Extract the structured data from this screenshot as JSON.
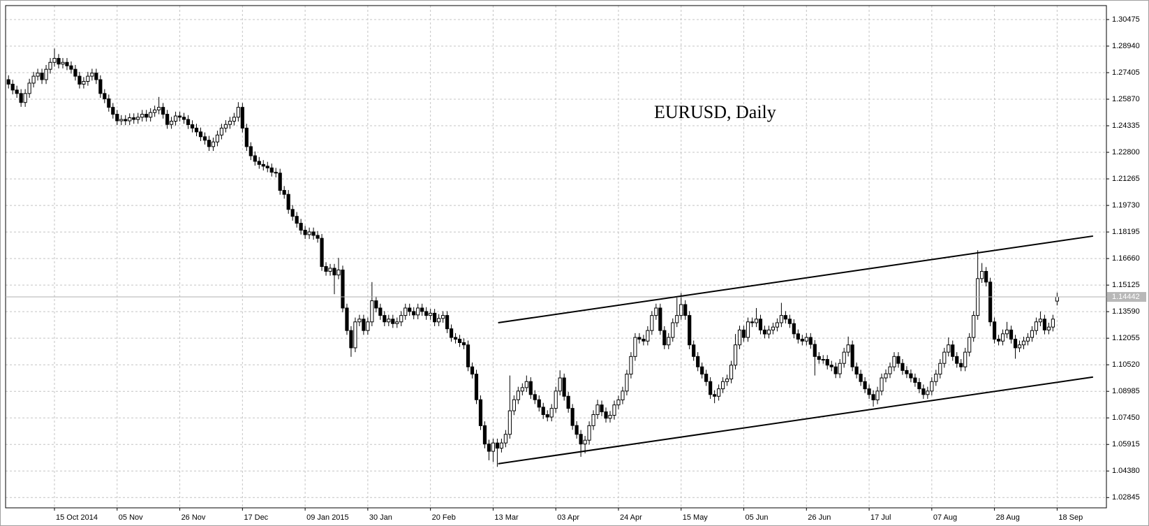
{
  "chart_data": {
    "type": "candlestick",
    "title": "EURUSD, Daily",
    "xlim": [
      -0.7,
      262.8
    ],
    "ylim": [
      1.02251,
      1.31281
    ],
    "grid": true,
    "up_color": "#ffffff",
    "down_color": "#000000",
    "line_color": "#000000",
    "xticks": [
      {
        "value": 11,
        "label": "15 Oct 2014"
      },
      {
        "value": 26,
        "label": "05 Nov"
      },
      {
        "value": 41,
        "label": "26 Nov"
      },
      {
        "value": 56,
        "label": "17 Dec"
      },
      {
        "value": 71,
        "label": "09 Jan 2015"
      },
      {
        "value": 86,
        "label": "30 Jan"
      },
      {
        "value": 101,
        "label": "20 Feb"
      },
      {
        "value": 116,
        "label": "13 Mar"
      },
      {
        "value": 131,
        "label": "03 Apr"
      },
      {
        "value": 146,
        "label": "24 Apr"
      },
      {
        "value": 161,
        "label": "15 May"
      },
      {
        "value": 176,
        "label": "05 Jun"
      },
      {
        "value": 191,
        "label": "26 Jun"
      },
      {
        "value": 206,
        "label": "17 Jul"
      },
      {
        "value": 221,
        "label": "07 Aug"
      },
      {
        "value": 236,
        "label": "28 Aug"
      },
      {
        "value": 251,
        "label": "18 Sep"
      }
    ],
    "yticks": [
      1.30475,
      {
        "value": 1.2894,
        "label": "1.28940"
      },
      1.27405,
      {
        "value": 1.2587,
        "label": "1.25870"
      },
      1.24335,
      {
        "value": 1.228,
        "label": "1.22800"
      },
      1.21265,
      {
        "value": 1.1973,
        "label": "1.19730"
      },
      1.18195,
      {
        "value": 1.1666,
        "label": "1.16660"
      },
      1.15125,
      {
        "value": 1.1359,
        "label": "1.13590"
      },
      1.12055,
      {
        "value": 1.1052,
        "label": "1.10520"
      },
      1.08985,
      {
        "value": 1.0745,
        "label": "1.07450"
      },
      1.05915,
      {
        "value": 1.0438,
        "label": "1.04380"
      },
      1.02845
    ],
    "last_price": 1.14442,
    "trendlines": [
      {
        "x": [
          117.2,
          259.6
        ],
        "y": [
          1.1295,
          1.1796
        ]
      },
      {
        "x": [
          117.2,
          259.6
        ],
        "y": [
          1.048,
          1.0981
        ]
      }
    ],
    "open": [
      1.27,
      1.2674,
      1.264,
      1.262,
      1.2568,
      1.262,
      1.268,
      1.272,
      1.2738,
      1.27,
      1.276,
      1.28,
      1.2823,
      1.279,
      1.28,
      1.278,
      1.276,
      1.272,
      1.2674,
      1.269,
      1.272,
      1.2738,
      1.27,
      1.262,
      1.2589,
      1.254,
      1.25,
      1.2462,
      1.247,
      1.2462,
      1.248,
      1.247,
      1.2483,
      1.25,
      1.2483,
      1.251,
      1.2525,
      1.254,
      1.25,
      1.2441,
      1.246,
      1.249,
      1.2483,
      1.247,
      1.244,
      1.242,
      1.2398,
      1.237,
      1.235,
      1.2313,
      1.234,
      1.238,
      1.242,
      1.2441,
      1.246,
      1.2483,
      1.254,
      1.242,
      1.2313,
      1.226,
      1.2228,
      1.221,
      1.22,
      1.219,
      1.2165,
      1.216,
      1.206,
      1.2037,
      1.195,
      1.191,
      1.187,
      1.183,
      1.1804,
      1.182,
      1.18,
      1.1783,
      1.162,
      1.1592,
      1.161,
      1.1571,
      1.16,
      1.138,
      1.125,
      1.115,
      1.13,
      1.1316,
      1.125,
      1.13,
      1.1422,
      1.138,
      1.1337,
      1.13,
      1.1316,
      1.129,
      1.13,
      1.1337,
      1.138,
      1.136,
      1.134,
      1.138,
      1.136,
      1.1337,
      1.135,
      1.13,
      1.132,
      1.1337,
      1.126,
      1.121,
      1.12,
      1.118,
      1.1167,
      1.104,
      1.0998,
      1.085,
      1.07,
      1.0594,
      1.0552,
      1.06,
      1.057,
      1.06,
      1.065,
      1.0786,
      1.085,
      1.09,
      1.092,
      1.0955,
      1.088,
      1.085,
      1.0807,
      1.0764,
      1.075,
      1.08,
      1.09,
      1.0976,
      1.087,
      1.08,
      1.0701,
      1.065,
      1.0594,
      1.0616,
      1.07,
      1.0764,
      1.082,
      1.078,
      1.0743,
      1.076,
      1.082,
      1.0849,
      1.09,
      1.0998,
      1.11,
      1.121,
      1.12,
      1.1189,
      1.125,
      1.1337,
      1.138,
      1.125,
      1.1167,
      1.121,
      1.1295,
      1.1337,
      1.14,
      1.1337,
      1.1167,
      1.11,
      1.104,
      1.0998,
      1.0955,
      1.088,
      1.087,
      1.0913,
      1.0955,
      1.097,
      1.105,
      1.1167,
      1.1253,
      1.121,
      1.13,
      1.1295,
      1.1316,
      1.1253,
      1.123,
      1.1253,
      1.127,
      1.1295,
      1.1337,
      1.1316,
      1.129,
      1.1231,
      1.12,
      1.1189,
      1.121,
      1.117,
      1.11,
      1.1083,
      1.1083,
      1.105,
      1.104,
      1.1,
      1.106,
      1.1125,
      1.1167,
      1.104,
      1.0998,
      1.0955,
      1.0913,
      1.088,
      1.0849,
      1.09,
      1.0976,
      1.1,
      1.104,
      1.11,
      1.106,
      1.1019,
      1.1,
      1.0976,
      1.095,
      1.0913,
      1.088,
      1.09,
      1.0955,
      1.0998,
      1.106,
      1.1125,
      1.1167,
      1.11,
      1.106,
      1.104,
      1.1125,
      1.121,
      1.1337,
      1.155,
      1.1592,
      1.153,
      1.13,
      1.12,
      1.1189,
      1.1231,
      1.1253,
      1.12,
      1.115,
      1.1167,
      1.1189,
      1.121,
      1.125,
      1.13,
      1.1316,
      1.1253,
      1.127,
      1.142
    ],
    "high": [
      1.2725,
      1.2699,
      1.2665,
      1.2645,
      1.2645,
      1.2705,
      1.2745,
      1.2763,
      1.2763,
      1.2785,
      1.2825,
      1.288,
      1.2848,
      1.2825,
      1.2825,
      1.2805,
      1.2785,
      1.2745,
      1.2715,
      1.2745,
      1.2763,
      1.2763,
      1.2725,
      1.2645,
      1.2614,
      1.2565,
      1.2525,
      1.2495,
      1.2495,
      1.2505,
      1.2505,
      1.2508,
      1.2525,
      1.2525,
      1.2535,
      1.255,
      1.26,
      1.2565,
      1.2525,
      1.2485,
      1.2515,
      1.2515,
      1.2508,
      1.2495,
      1.2465,
      1.2445,
      1.2423,
      1.2395,
      1.2375,
      1.2365,
      1.2405,
      1.2445,
      1.2466,
      1.2485,
      1.2508,
      1.257,
      1.2565,
      1.2445,
      1.2338,
      1.2285,
      1.2253,
      1.2235,
      1.2225,
      1.2215,
      1.219,
      1.2185,
      1.2085,
      1.2062,
      1.1975,
      1.1935,
      1.1895,
      1.1855,
      1.1845,
      1.1845,
      1.1825,
      1.1808,
      1.1645,
      1.1635,
      1.1635,
      1.167,
      1.1625,
      1.1405,
      1.1275,
      1.1325,
      1.1341,
      1.1341,
      1.1325,
      1.153,
      1.1447,
      1.1405,
      1.1362,
      1.1341,
      1.1341,
      1.1325,
      1.1362,
      1.1405,
      1.1405,
      1.1385,
      1.1405,
      1.1405,
      1.1385,
      1.1375,
      1.1375,
      1.1345,
      1.1362,
      1.1362,
      1.1285,
      1.1235,
      1.1225,
      1.1205,
      1.1192,
      1.1065,
      1.1023,
      1.0875,
      1.0725,
      1.0619,
      1.0625,
      1.0625,
      1.0625,
      1.0675,
      1.099,
      1.0875,
      1.0925,
      1.0945,
      1.099,
      1.098,
      1.0905,
      1.0875,
      1.0832,
      1.0789,
      1.0825,
      1.0925,
      1.102,
      1.1001,
      1.0895,
      1.0825,
      1.0726,
      1.0675,
      1.0641,
      1.0725,
      1.0789,
      1.085,
      1.0845,
      1.0805,
      1.0785,
      1.0845,
      1.0874,
      1.0925,
      1.1023,
      1.1125,
      1.1235,
      1.1235,
      1.1225,
      1.1275,
      1.1362,
      1.1405,
      1.1405,
      1.1275,
      1.1235,
      1.132,
      1.144,
      1.1467,
      1.1425,
      1.1362,
      1.1192,
      1.1125,
      1.1065,
      1.1023,
      1.098,
      1.0905,
      1.0938,
      1.098,
      1.0995,
      1.1075,
      1.123,
      1.1278,
      1.1278,
      1.1325,
      1.1325,
      1.138,
      1.1341,
      1.1278,
      1.1278,
      1.1295,
      1.132,
      1.141,
      1.1362,
      1.1341,
      1.1315,
      1.1256,
      1.1225,
      1.1235,
      1.1235,
      1.1195,
      1.1125,
      1.1108,
      1.1108,
      1.1075,
      1.1065,
      1.1085,
      1.115,
      1.1215,
      1.1192,
      1.1065,
      1.1023,
      1.098,
      1.0938,
      1.0905,
      1.0925,
      1.1001,
      1.1025,
      1.1065,
      1.1125,
      1.1125,
      1.1085,
      1.1044,
      1.1025,
      1.1001,
      1.0975,
      1.0938,
      1.0925,
      1.098,
      1.1023,
      1.1085,
      1.115,
      1.121,
      1.1192,
      1.1125,
      1.1085,
      1.115,
      1.1235,
      1.1362,
      1.1714,
      1.164,
      1.1617,
      1.1555,
      1.1325,
      1.1225,
      1.1256,
      1.13,
      1.1278,
      1.1225,
      1.1192,
      1.1214,
      1.1235,
      1.1275,
      1.1325,
      1.136,
      1.1341,
      1.1295,
      1.1341,
      1.1469
    ],
    "low": [
      1.2649,
      1.2615,
      1.2595,
      1.2543,
      1.2543,
      1.2595,
      1.2655,
      1.2695,
      1.2675,
      1.2675,
      1.2735,
      1.2775,
      1.2765,
      1.2765,
      1.2755,
      1.2735,
      1.2695,
      1.2649,
      1.2649,
      1.2665,
      1.2695,
      1.2675,
      1.2595,
      1.2564,
      1.2515,
      1.2475,
      1.2437,
      1.2437,
      1.2437,
      1.2437,
      1.2445,
      1.2445,
      1.2458,
      1.2458,
      1.2458,
      1.2485,
      1.25,
      1.2475,
      1.2416,
      1.2416,
      1.2435,
      1.2458,
      1.2445,
      1.2415,
      1.2395,
      1.2373,
      1.2345,
      1.2325,
      1.2288,
      1.2288,
      1.2315,
      1.2355,
      1.2395,
      1.2416,
      1.2435,
      1.2458,
      1.2395,
      1.2288,
      1.2235,
      1.2203,
      1.2185,
      1.2175,
      1.2165,
      1.214,
      1.2135,
      1.2035,
      1.2012,
      1.1925,
      1.1885,
      1.1845,
      1.1805,
      1.1779,
      1.1779,
      1.1775,
      1.1758,
      1.1595,
      1.1567,
      1.1567,
      1.146,
      1.1546,
      1.1355,
      1.1225,
      1.1098,
      1.1125,
      1.1275,
      1.1225,
      1.1225,
      1.1275,
      1.1355,
      1.1312,
      1.1275,
      1.1275,
      1.1265,
      1.1265,
      1.1275,
      1.1312,
      1.1335,
      1.1315,
      1.1315,
      1.1335,
      1.1312,
      1.1312,
      1.1275,
      1.1275,
      1.1295,
      1.1235,
      1.1185,
      1.1175,
      1.1155,
      1.1142,
      1.1015,
      1.0973,
      1.0825,
      1.0675,
      1.0569,
      1.05,
      1.049,
      1.0462,
      1.0545,
      1.0575,
      1.0625,
      1.0761,
      1.0825,
      1.0875,
      1.0895,
      1.0855,
      1.0825,
      1.0782,
      1.0739,
      1.0725,
      1.0725,
      1.0775,
      1.0875,
      1.0845,
      1.0775,
      1.0676,
      1.0625,
      1.052,
      1.054,
      1.0591,
      1.0675,
      1.0739,
      1.0755,
      1.0718,
      1.0718,
      1.0735,
      1.0795,
      1.0824,
      1.0875,
      1.0973,
      1.1075,
      1.1175,
      1.1164,
      1.1164,
      1.1225,
      1.1312,
      1.1225,
      1.1142,
      1.1142,
      1.1185,
      1.127,
      1.1312,
      1.1312,
      1.1142,
      1.1075,
      1.1015,
      1.0973,
      1.093,
      1.0855,
      1.083,
      1.0845,
      1.0888,
      1.093,
      1.0945,
      1.1025,
      1.1142,
      1.1185,
      1.1185,
      1.127,
      1.127,
      1.1228,
      1.1205,
      1.1205,
      1.1228,
      1.1245,
      1.127,
      1.1291,
      1.1265,
      1.1206,
      1.1175,
      1.1164,
      1.1164,
      1.1145,
      1.099,
      1.1058,
      1.1058,
      1.1025,
      1.1015,
      1.0975,
      1.0975,
      1.1035,
      1.11,
      1.1015,
      1.0973,
      1.093,
      1.0888,
      1.0855,
      1.081,
      1.0824,
      1.0875,
      1.0951,
      1.0975,
      1.1015,
      1.1035,
      1.0994,
      1.0975,
      1.0951,
      1.0925,
      1.0888,
      1.0855,
      1.0855,
      1.0875,
      1.093,
      1.0973,
      1.1035,
      1.11,
      1.1075,
      1.1035,
      1.1015,
      1.1015,
      1.11,
      1.1185,
      1.1312,
      1.1525,
      1.1505,
      1.1275,
      1.1175,
      1.1164,
      1.1164,
      1.1206,
      1.1175,
      1.1087,
      1.1125,
      1.1142,
      1.1164,
      1.1185,
      1.1225,
      1.1275,
      1.1228,
      1.1228,
      1.1245,
      1.1395
    ],
    "close": [
      1.2674,
      1.264,
      1.262,
      1.2568,
      1.262,
      1.268,
      1.272,
      1.2738,
      1.27,
      1.276,
      1.28,
      1.2823,
      1.279,
      1.28,
      1.278,
      1.276,
      1.272,
      1.2674,
      1.269,
      1.272,
      1.2738,
      1.27,
      1.262,
      1.2589,
      1.254,
      1.25,
      1.2462,
      1.247,
      1.2462,
      1.248,
      1.247,
      1.2483,
      1.25,
      1.2483,
      1.251,
      1.2525,
      1.254,
      1.25,
      1.2441,
      1.246,
      1.249,
      1.2483,
      1.247,
      1.244,
      1.242,
      1.2398,
      1.237,
      1.235,
      1.2313,
      1.234,
      1.238,
      1.242,
      1.2441,
      1.246,
      1.2483,
      1.254,
      1.242,
      1.2313,
      1.226,
      1.2228,
      1.221,
      1.22,
      1.219,
      1.2165,
      1.216,
      1.206,
      1.2037,
      1.195,
      1.191,
      1.187,
      1.183,
      1.1804,
      1.182,
      1.18,
      1.1783,
      1.162,
      1.1592,
      1.161,
      1.1571,
      1.16,
      1.138,
      1.125,
      1.115,
      1.13,
      1.1316,
      1.125,
      1.13,
      1.1422,
      1.138,
      1.1337,
      1.13,
      1.1316,
      1.129,
      1.13,
      1.1337,
      1.138,
      1.136,
      1.134,
      1.138,
      1.136,
      1.1337,
      1.135,
      1.13,
      1.132,
      1.1337,
      1.126,
      1.121,
      1.12,
      1.118,
      1.1167,
      1.104,
      1.0998,
      1.085,
      1.07,
      1.0594,
      1.0552,
      1.06,
      1.057,
      1.06,
      1.065,
      1.0786,
      1.085,
      1.09,
      1.092,
      1.0955,
      1.088,
      1.085,
      1.0807,
      1.0764,
      1.075,
      1.08,
      1.09,
      1.0976,
      1.087,
      1.08,
      1.0701,
      1.065,
      1.0594,
      1.0616,
      1.07,
      1.0764,
      1.082,
      1.078,
      1.0743,
      1.076,
      1.082,
      1.0849,
      1.09,
      1.0998,
      1.11,
      1.121,
      1.12,
      1.1189,
      1.125,
      1.1337,
      1.138,
      1.125,
      1.1167,
      1.121,
      1.1295,
      1.1337,
      1.14,
      1.1337,
      1.1167,
      1.11,
      1.104,
      1.0998,
      1.0955,
      1.088,
      1.087,
      1.0913,
      1.0955,
      1.097,
      1.105,
      1.1167,
      1.1253,
      1.121,
      1.13,
      1.1295,
      1.1316,
      1.1253,
      1.123,
      1.1253,
      1.127,
      1.1295,
      1.1337,
      1.1316,
      1.129,
      1.1231,
      1.12,
      1.1189,
      1.121,
      1.117,
      1.11,
      1.1083,
      1.1083,
      1.105,
      1.104,
      1.1,
      1.106,
      1.1125,
      1.1167,
      1.104,
      1.0998,
      1.0955,
      1.0913,
      1.088,
      1.0849,
      1.09,
      1.0976,
      1.1,
      1.104,
      1.11,
      1.106,
      1.1019,
      1.1,
      1.0976,
      1.095,
      1.0913,
      1.088,
      1.09,
      1.0955,
      1.0998,
      1.106,
      1.1125,
      1.1167,
      1.11,
      1.106,
      1.104,
      1.1125,
      1.121,
      1.1337,
      1.155,
      1.1592,
      1.153,
      1.13,
      1.12,
      1.1189,
      1.1231,
      1.1253,
      1.12,
      1.115,
      1.1167,
      1.1189,
      1.121,
      1.125,
      1.13,
      1.1316,
      1.1253,
      1.127,
      1.1316,
      1.14442
    ]
  }
}
